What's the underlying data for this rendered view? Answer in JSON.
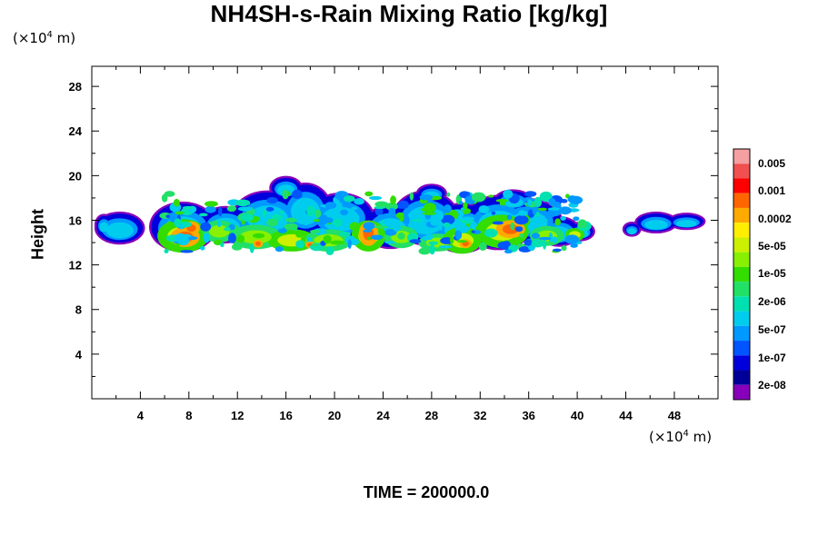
{
  "chart_data": {
    "type": "heatmap",
    "title": "NH4SH-s-Rain Mixing Ratio [kg/kg]",
    "ylabel": "Height",
    "x_unit_label": "(×10⁴ m)",
    "y_unit_label": "(×10⁴ m)",
    "footer": "TIME = 200000.0",
    "xlim": [
      0,
      51.6
    ],
    "ylim": [
      0,
      29.8
    ],
    "x_ticks": [
      4,
      8,
      12,
      16,
      20,
      24,
      28,
      32,
      36,
      40,
      44,
      48
    ],
    "y_ticks": [
      4,
      8,
      12,
      16,
      20,
      24,
      28
    ],
    "colorbar": {
      "labels": [
        "0.005",
        "0.001",
        "0.0002",
        "5e-05",
        "1e-05",
        "2e-06",
        "5e-07",
        "1e-07",
        "2e-08"
      ],
      "colors": [
        "#f4a0a0",
        "#f05050",
        "#ff0000",
        "#ff6600",
        "#ffaa00",
        "#ffee00",
        "#ccf000",
        "#88f000",
        "#33dd00",
        "#22e066",
        "#00e0b0",
        "#00ccee",
        "#0099ff",
        "#0055ff",
        "#0000dd",
        "#000099",
        "#8800bb"
      ]
    },
    "regions": [
      {
        "x": [
          0.2,
          10.2
        ],
        "y": [
          13.0,
          18.0
        ],
        "level": 0
      },
      {
        "x": [
          10.2,
          40.5
        ],
        "y": [
          12.8,
          19.6
        ],
        "level": 1
      },
      {
        "x": [
          44.0,
          51.6
        ],
        "y": [
          14.8,
          17.0
        ],
        "level": 0
      }
    ]
  }
}
